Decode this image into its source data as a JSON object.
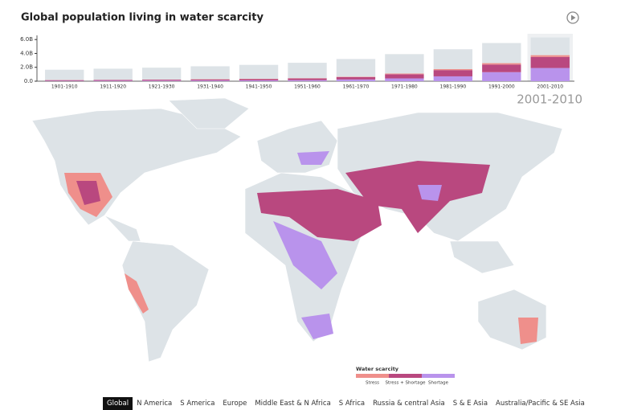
{
  "chart_data": {
    "type": "bar",
    "stacked": true,
    "title": "Global population living in water scarcity",
    "selected_period": "2001-2010",
    "categories": [
      "1901-1910",
      "1911-1920",
      "1921-1930",
      "1931-1940",
      "1941-1950",
      "1951-1960",
      "1961-1970",
      "1971-1980",
      "1981-1990",
      "1991-2000",
      "2001-2010"
    ],
    "series": [
      {
        "name": "Shortage",
        "color": "#b993ec",
        "values": [
          0.05,
          0.06,
          0.08,
          0.1,
          0.12,
          0.15,
          0.25,
          0.4,
          0.7,
          1.3,
          1.9
        ]
      },
      {
        "name": "Stress + Shortage",
        "color": "#b9487f",
        "values": [
          0.1,
          0.12,
          0.14,
          0.16,
          0.2,
          0.25,
          0.35,
          0.6,
          0.9,
          1.1,
          1.6
        ]
      },
      {
        "name": "Stress",
        "color": "#ef8f8b",
        "values": [
          0.02,
          0.02,
          0.02,
          0.03,
          0.03,
          0.04,
          0.05,
          0.1,
          0.15,
          0.2,
          0.25
        ]
      },
      {
        "color": "#dde3e7",
        "values": [
          1.48,
          1.6,
          1.71,
          1.86,
          2.0,
          2.21,
          2.55,
          2.8,
          2.85,
          2.9,
          2.55
        ]
      }
    ],
    "ylim": [
      0,
      6.6
    ],
    "yticks": [
      {
        "value": 0,
        "label": "0.0"
      },
      {
        "value": 2,
        "label": "2.0B"
      },
      {
        "value": 4,
        "label": "4.0B"
      },
      {
        "value": 6,
        "label": "6.0B"
      }
    ],
    "legend_title": "Water scarcity",
    "regions": [
      "Global",
      "N America",
      "S America",
      "Europe",
      "Middle East & N Africa",
      "S Africa",
      "Russia & central Asia",
      "S & E Asia",
      "Australia/Pacific & SE Asia"
    ]
  }
}
